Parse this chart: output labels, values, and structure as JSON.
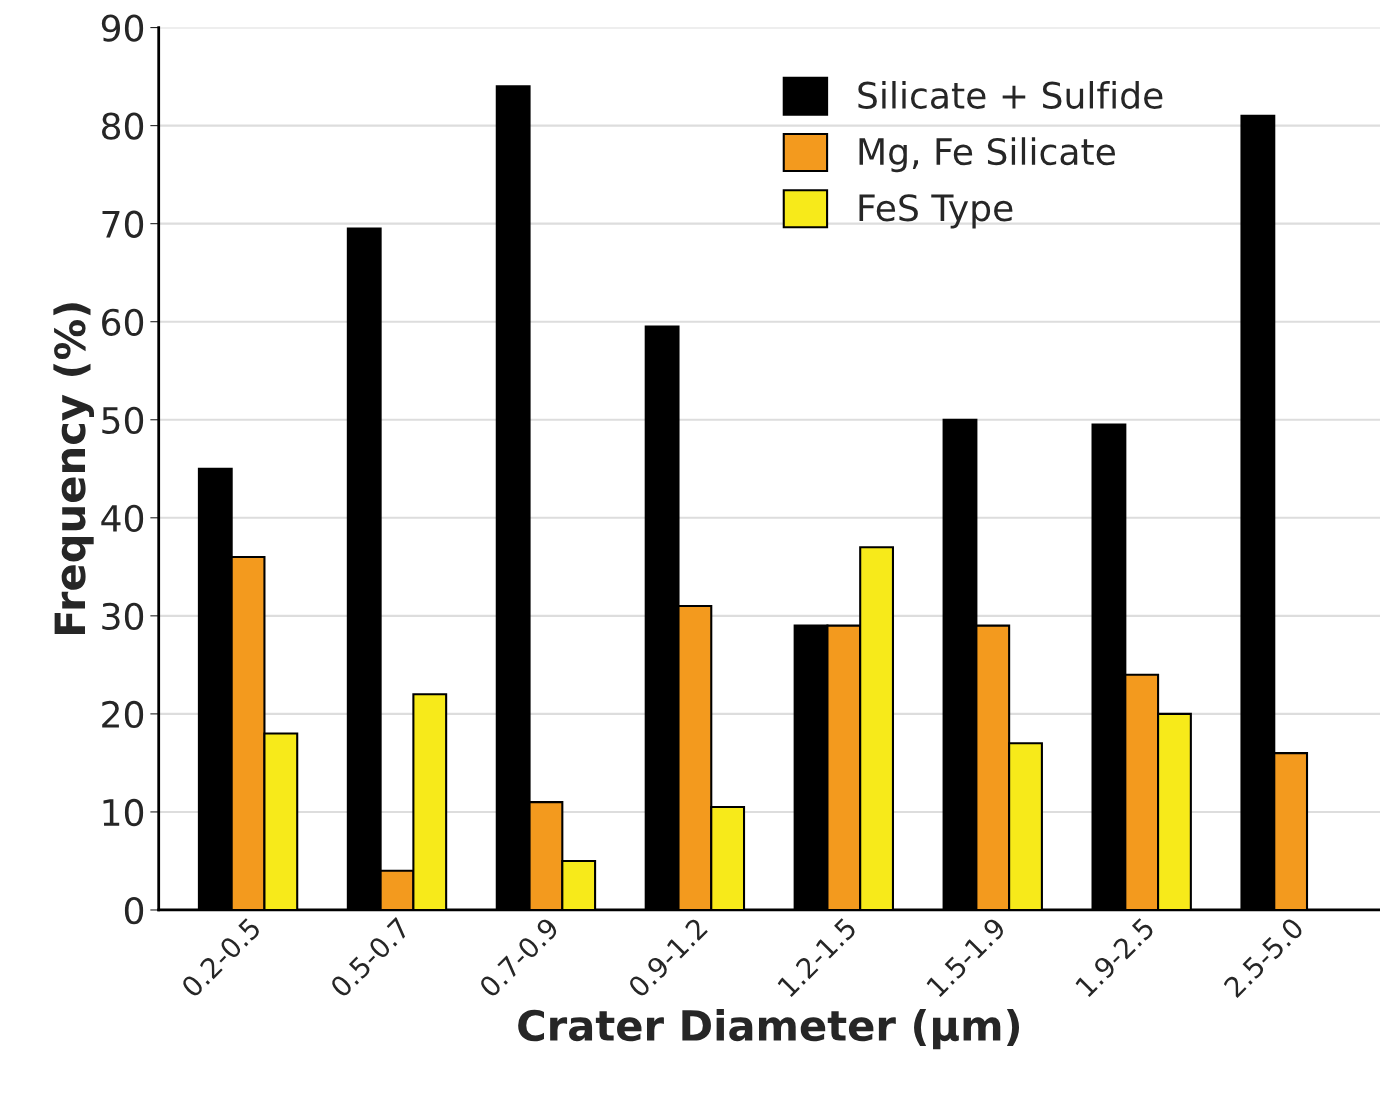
{
  "chart_data": {
    "type": "bar",
    "xlabel": "Crater Diameter (µm)",
    "ylabel": "Frequency (%)",
    "categories": [
      "0.2-0.5",
      "0.5-0.7",
      "0.7-0.9",
      "0.9-1.2",
      "1.2-1.5",
      "1.5-1.9",
      "1.9-2.5",
      "2.5-5.0"
    ],
    "series": [
      {
        "name": "Silicate + Sulfide",
        "color": "#000000",
        "values": [
          45,
          69.5,
          84,
          59.5,
          29,
          50,
          49.5,
          81
        ]
      },
      {
        "name": "Mg, Fe Silicate",
        "color": "#f39a1e",
        "values": [
          36,
          4,
          11,
          31,
          29,
          29,
          24,
          16
        ]
      },
      {
        "name": "FeS Type",
        "color": "#f7ea1a",
        "values": [
          18,
          22,
          5,
          10.5,
          37,
          17,
          20,
          null
        ]
      }
    ],
    "ylim": [
      0,
      90
    ],
    "yticks": [
      0,
      10,
      20,
      30,
      40,
      50,
      60,
      70,
      80,
      90
    ],
    "grid": "y",
    "legend": "top right"
  }
}
